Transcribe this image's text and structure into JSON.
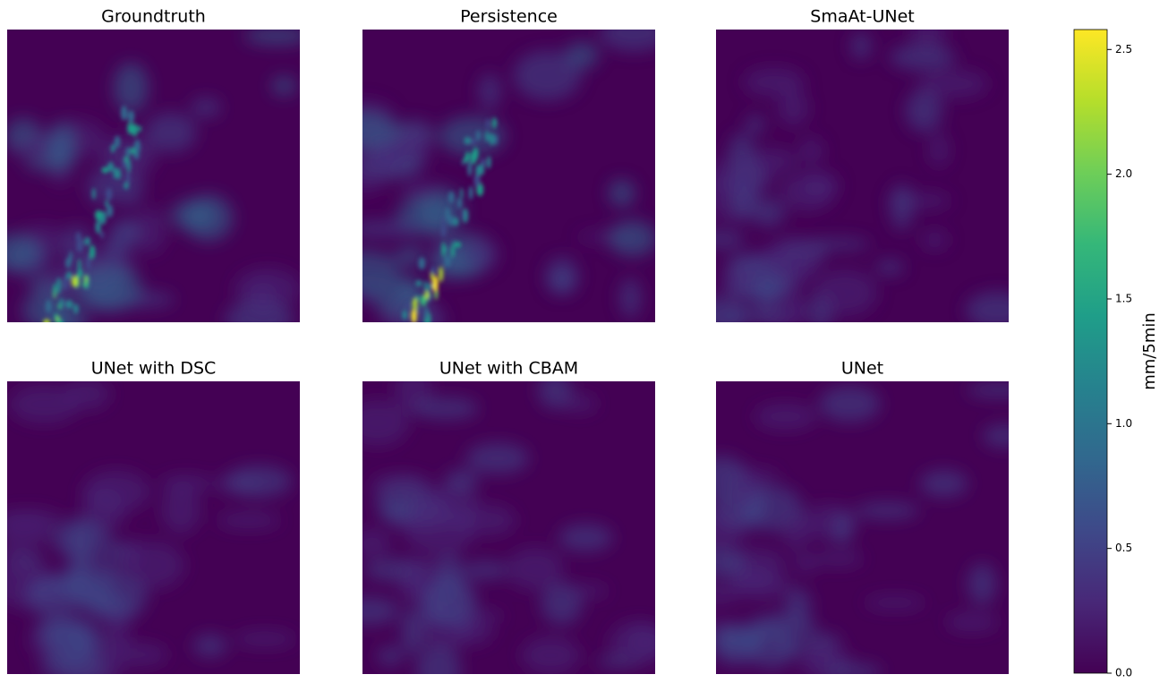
{
  "chart_data": {
    "type": "heatmap",
    "panels": [
      "Groundtruth",
      "Persistence",
      "SmaAt-UNet",
      "UNet with DSC",
      "UNet with CBAM",
      "UNet"
    ],
    "colormap": [
      "#440154",
      "#482878",
      "#3e4989",
      "#31688e",
      "#26828e",
      "#1f9e89",
      "#35b779",
      "#6ece58",
      "#b5de2b",
      "#fde725"
    ],
    "colorbar": {
      "label": "mm/5min",
      "lim": [
        0,
        2.58
      ],
      "ticks": [
        {
          "value": 0,
          "label": "0.0"
        },
        0.5,
        {
          "value": 1,
          "label": "1.0"
        },
        1.5,
        {
          "value": 2,
          "label": "2.0"
        },
        2.5
      ]
    }
  }
}
